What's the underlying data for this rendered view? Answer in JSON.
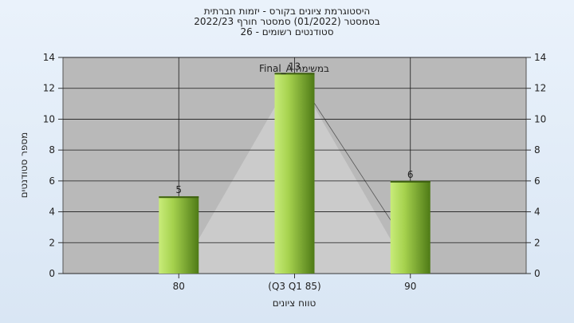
{
  "chart_data": {
    "type": "bar",
    "title_lines": [
      "היסטוגרמת ציונים בקורס - יזמות חברתית",
      "בסמסטר  (01/2022)  סמסטר חורף 2022/23",
      "סטודנטים רשומים - 26"
    ],
    "categories": [
      "80",
      "(Q3 Q1 85)",
      "90"
    ],
    "values": [
      5,
      13,
      6
    ],
    "value_labels": [
      "5",
      "13",
      "6"
    ],
    "annotation": "Final_A במשימה",
    "xlabel": "טווח ציונים",
    "ylabel": "מספר סטודנטים",
    "ylim": [
      0,
      14
    ],
    "yticks": [
      0,
      2,
      4,
      6,
      8,
      10,
      12,
      14
    ],
    "grid": true,
    "colors": {
      "bar_light": "#c8ec7a",
      "bar_dark": "#4e7a16",
      "plot_bg": "#b9b9b9",
      "triangle": "#cbcbcb",
      "grid": "#1a1a1a"
    }
  }
}
